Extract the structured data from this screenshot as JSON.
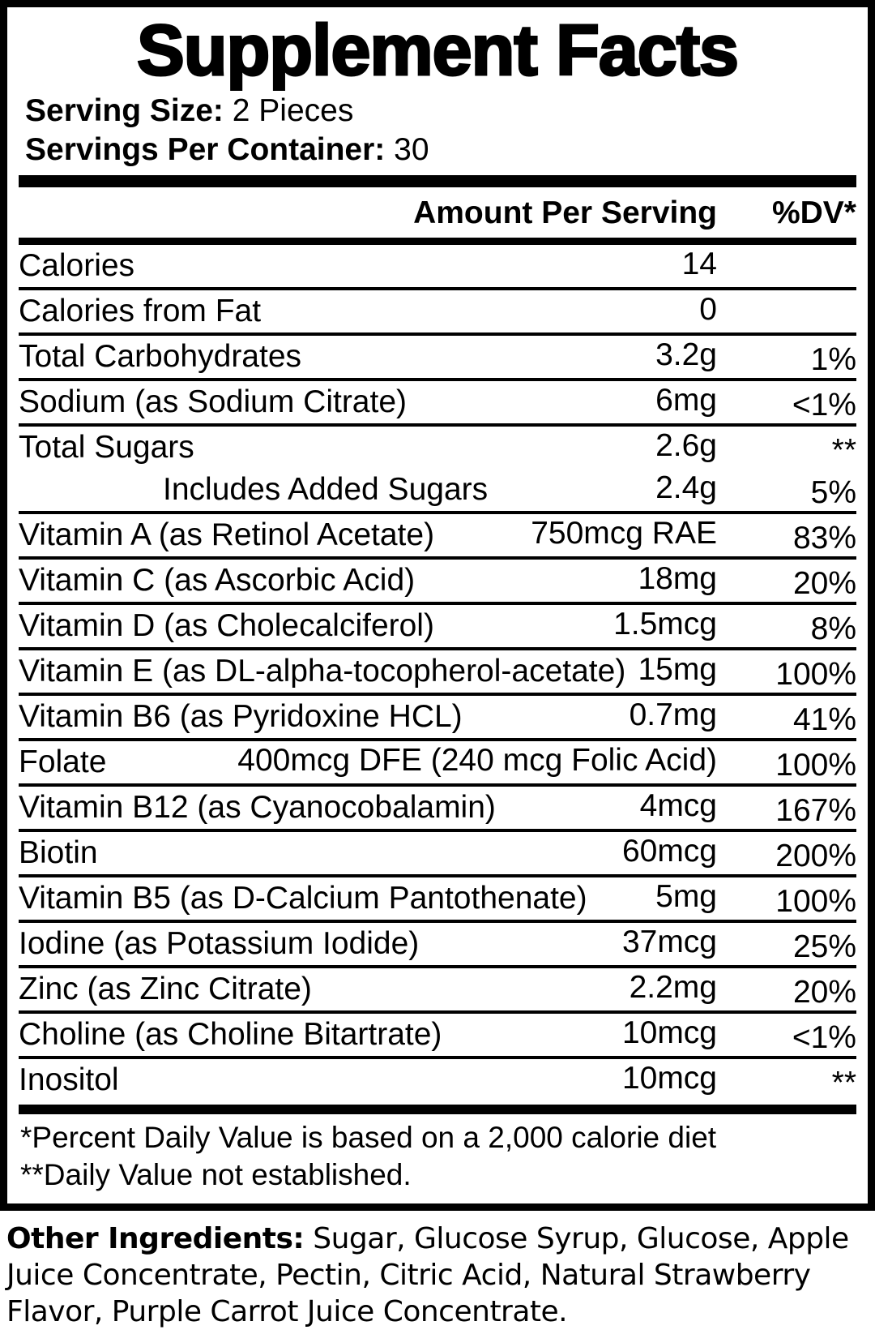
{
  "title": "Supplement Facts",
  "serving": {
    "size_label": "Serving Size:",
    "size_value": "2 Pieces",
    "per_container_label": "Servings Per Container:",
    "per_container_value": "30"
  },
  "table": {
    "amount_header": "Amount Per Serving",
    "dv_header": "%DV*",
    "rows": [
      {
        "name": "Calories",
        "amount": "14",
        "dv": ""
      },
      {
        "name": "Calories from Fat",
        "amount": "0",
        "dv": ""
      },
      {
        "name": "Total Carbohydrates",
        "amount": "3.2g",
        "dv": "1%"
      },
      {
        "name": "Sodium (as Sodium Citrate)",
        "amount": "6mg",
        "dv": "<1%"
      },
      {
        "name": "Total Sugars",
        "amount": "2.6g",
        "dv": "**"
      },
      {
        "name": "Includes Added Sugars",
        "amount": "2.4g",
        "dv": "5%",
        "indent": true
      },
      {
        "name": "Vitamin A (as Retinol Acetate)",
        "amount": "750mcg RAE",
        "dv": "83%"
      },
      {
        "name": "Vitamin C (as Ascorbic Acid)",
        "amount": "18mg",
        "dv": "20%"
      },
      {
        "name": "Vitamin D (as Cholecalciferol)",
        "amount": "1.5mcg",
        "dv": "8%"
      },
      {
        "name": "Vitamin E (as DL-alpha-tocopherol-acetate)",
        "amount": "15mg",
        "dv": "100%"
      },
      {
        "name": "Vitamin B6 (as Pyridoxine HCL)",
        "amount": "0.7mg",
        "dv": "41%"
      },
      {
        "name": "Folate",
        "amount": "400mcg DFE (240 mcg Folic Acid)",
        "dv": "100%"
      },
      {
        "name": "Vitamin B12 (as Cyanocobalamin)",
        "amount": "4mcg",
        "dv": "167%"
      },
      {
        "name": "Biotin",
        "amount": "60mcg",
        "dv": "200%"
      },
      {
        "name": "Vitamin B5 (as D-Calcium Pantothenate)",
        "amount": "5mg",
        "dv": "100%"
      },
      {
        "name": "Iodine (as Potassium Iodide)",
        "amount": "37mcg",
        "dv": "25%"
      },
      {
        "name": "Zinc (as Zinc Citrate)",
        "amount": "2.2mg",
        "dv": "20%"
      },
      {
        "name": "Choline (as Choline Bitartrate)",
        "amount": "10mcg",
        "dv": "<1%"
      },
      {
        "name": "Inositol",
        "amount": "10mcg",
        "dv": "**"
      }
    ]
  },
  "footnotes": [
    "*Percent Daily Value is based on a 2,000 calorie diet",
    "**Daily Value not established."
  ],
  "other_ingredients": {
    "label": "Other Ingredients:",
    "text": " Sugar, Glucose Syrup, Glucose, Apple Juice Concentrate, Pectin, Citric Acid, Natural Strawberry Flavor, Purple Carrot Juice Concentrate."
  },
  "colors": {
    "text": "#000000",
    "background": "#ffffff"
  }
}
